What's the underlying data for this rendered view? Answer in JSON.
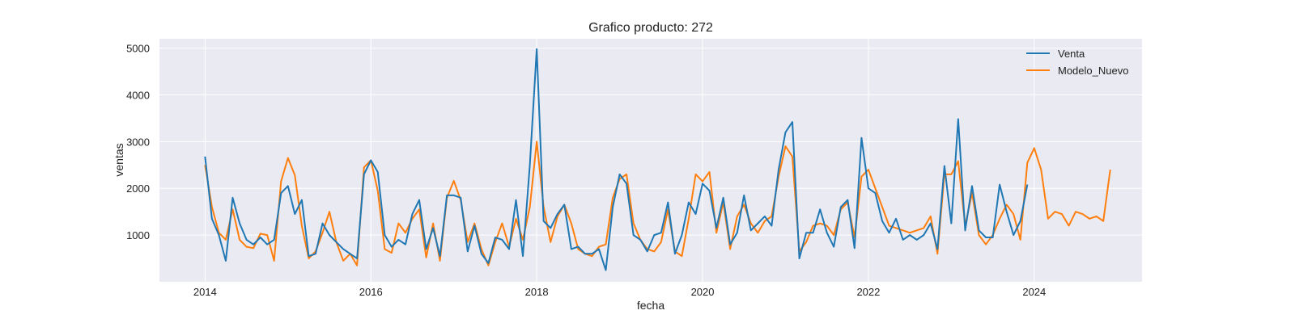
{
  "chart_data": {
    "type": "line",
    "title": "Grafico producto: 272",
    "xlabel": "fecha",
    "ylabel": "ventas",
    "x_tick_labels": [
      "2014",
      "2016",
      "2018",
      "2020",
      "2022",
      "2024"
    ],
    "y_tick_labels": [
      "1000",
      "2000",
      "3000",
      "4000",
      "5000"
    ],
    "x_tick_values": [
      2014,
      2016,
      2018,
      2020,
      2022,
      2024
    ],
    "y_tick_values": [
      1000,
      2000,
      3000,
      4000,
      5000
    ],
    "xlim": [
      2013.45,
      2025.3
    ],
    "ylim": [
      0,
      5200
    ],
    "grid": true,
    "legend_position": "top-right",
    "series": [
      {
        "name": "Venta",
        "color": "#1f77b4",
        "x": [
          2014.0,
          2014.083,
          2014.167,
          2014.25,
          2014.333,
          2014.417,
          2014.5,
          2014.583,
          2014.667,
          2014.75,
          2014.833,
          2014.917,
          2015.0,
          2015.083,
          2015.167,
          2015.25,
          2015.333,
          2015.417,
          2015.5,
          2015.583,
          2015.667,
          2015.75,
          2015.833,
          2015.917,
          2016.0,
          2016.083,
          2016.167,
          2016.25,
          2016.333,
          2016.417,
          2016.5,
          2016.583,
          2016.667,
          2016.75,
          2016.833,
          2016.917,
          2017.0,
          2017.083,
          2017.167,
          2017.25,
          2017.333,
          2017.417,
          2017.5,
          2017.583,
          2017.667,
          2017.75,
          2017.833,
          2017.917,
          2018.0,
          2018.083,
          2018.167,
          2018.25,
          2018.333,
          2018.417,
          2018.5,
          2018.583,
          2018.667,
          2018.75,
          2018.833,
          2018.917,
          2019.0,
          2019.083,
          2019.167,
          2019.25,
          2019.333,
          2019.417,
          2019.5,
          2019.583,
          2019.667,
          2019.75,
          2019.833,
          2019.917,
          2020.0,
          2020.083,
          2020.167,
          2020.25,
          2020.333,
          2020.417,
          2020.5,
          2020.583,
          2020.667,
          2020.75,
          2020.833,
          2020.917,
          2021.0,
          2021.083,
          2021.167,
          2021.25,
          2021.333,
          2021.417,
          2021.5,
          2021.583,
          2021.667,
          2021.75,
          2021.833,
          2021.917,
          2022.0,
          2022.083,
          2022.167,
          2022.25,
          2022.333,
          2022.417,
          2022.5,
          2022.583,
          2022.667,
          2022.75,
          2022.833,
          2022.917,
          2023.0,
          2023.083,
          2023.167,
          2023.25,
          2023.333,
          2023.417,
          2023.5,
          2023.583,
          2023.667,
          2023.75,
          2023.833,
          2023.917
        ],
        "values": [
          2680,
          1350,
          1000,
          450,
          1800,
          1250,
          900,
          800,
          950,
          800,
          900,
          1900,
          2050,
          1450,
          1750,
          550,
          600,
          1250,
          1000,
          850,
          700,
          600,
          500,
          2300,
          2600,
          2350,
          1000,
          750,
          900,
          800,
          1450,
          1750,
          700,
          1150,
          550,
          1850,
          1850,
          1800,
          650,
          1200,
          600,
          400,
          950,
          900,
          700,
          1750,
          550,
          2500,
          4980,
          1300,
          1150,
          1450,
          1650,
          700,
          750,
          600,
          600,
          700,
          250,
          1600,
          2300,
          2100,
          1000,
          900,
          650,
          1000,
          1050,
          1700,
          600,
          1000,
          1700,
          1450,
          2100,
          1950,
          1150,
          1800,
          800,
          1050,
          1850,
          1100,
          1250,
          1400,
          1200,
          2400,
          3200,
          3420,
          500,
          1050,
          1050,
          1550,
          1050,
          750,
          1600,
          1750,
          720,
          3080,
          2000,
          1900,
          1300,
          1050,
          1350,
          900,
          1000,
          900,
          1000,
          1250,
          700,
          2480,
          1250,
          3480,
          1100,
          2050,
          1100,
          950,
          950,
          2080,
          1500,
          1000,
          1300,
          2080
        ]
      },
      {
        "name": "Modelo_Nuevo",
        "color": "#ff7f0e",
        "x": [
          2014.0,
          2014.083,
          2014.167,
          2014.25,
          2014.333,
          2014.417,
          2014.5,
          2014.583,
          2014.667,
          2014.75,
          2014.833,
          2014.917,
          2015.0,
          2015.083,
          2015.167,
          2015.25,
          2015.333,
          2015.417,
          2015.5,
          2015.583,
          2015.667,
          2015.75,
          2015.833,
          2015.917,
          2016.0,
          2016.083,
          2016.167,
          2016.25,
          2016.333,
          2016.417,
          2016.5,
          2016.583,
          2016.667,
          2016.75,
          2016.833,
          2016.917,
          2017.0,
          2017.083,
          2017.167,
          2017.25,
          2017.333,
          2017.417,
          2017.5,
          2017.583,
          2017.667,
          2017.75,
          2017.833,
          2017.917,
          2018.0,
          2018.083,
          2018.167,
          2018.25,
          2018.333,
          2018.417,
          2018.5,
          2018.583,
          2018.667,
          2018.75,
          2018.833,
          2018.917,
          2019.0,
          2019.083,
          2019.167,
          2019.25,
          2019.333,
          2019.417,
          2019.5,
          2019.583,
          2019.667,
          2019.75,
          2019.833,
          2019.917,
          2020.0,
          2020.083,
          2020.167,
          2020.25,
          2020.333,
          2020.417,
          2020.5,
          2020.583,
          2020.667,
          2020.75,
          2020.833,
          2020.917,
          2021.0,
          2021.083,
          2021.167,
          2021.25,
          2021.333,
          2021.417,
          2021.5,
          2021.583,
          2021.667,
          2021.75,
          2021.833,
          2021.917,
          2022.0,
          2022.083,
          2022.167,
          2022.25,
          2022.333,
          2022.417,
          2022.5,
          2022.583,
          2022.667,
          2022.75,
          2022.833,
          2022.917,
          2023.0,
          2023.083,
          2023.167,
          2023.25,
          2023.333,
          2023.417,
          2023.5,
          2023.583,
          2023.667,
          2023.75,
          2023.833,
          2023.917,
          2024.0,
          2024.083,
          2024.167,
          2024.25,
          2024.333,
          2024.417,
          2024.5,
          2024.583,
          2024.667,
          2024.75,
          2024.833,
          2024.917
        ],
        "values": [
          2500,
          1600,
          1050,
          900,
          1550,
          900,
          750,
          720,
          1030,
          1000,
          450,
          2150,
          2650,
          2280,
          1200,
          500,
          650,
          1050,
          1500,
          850,
          450,
          600,
          350,
          2450,
          2600,
          1950,
          700,
          620,
          1250,
          1050,
          1350,
          1550,
          520,
          1250,
          450,
          1800,
          2160,
          1750,
          850,
          1250,
          700,
          350,
          850,
          1250,
          750,
          1350,
          900,
          1600,
          3000,
          1600,
          850,
          1400,
          1650,
          1250,
          700,
          600,
          550,
          750,
          800,
          1800,
          2200,
          2300,
          1250,
          900,
          700,
          650,
          850,
          1550,
          650,
          550,
          1350,
          2300,
          2150,
          2350,
          1050,
          1700,
          700,
          1400,
          1650,
          1250,
          1050,
          1300,
          1400,
          2250,
          2900,
          2680,
          650,
          850,
          1200,
          1250,
          1200,
          1000,
          1550,
          1700,
          950,
          2250,
          2400,
          2000,
          1600,
          1200,
          1150,
          1100,
          1050,
          1100,
          1150,
          1400,
          600,
          2300,
          2300,
          2580,
          1200,
          1900,
          1000,
          800,
          1000,
          1350,
          1650,
          1450,
          900,
          2550,
          2860,
          2400,
          1350,
          1500,
          1450,
          1200,
          1500,
          1450,
          1350,
          1400,
          1300,
          2400
        ]
      }
    ]
  }
}
